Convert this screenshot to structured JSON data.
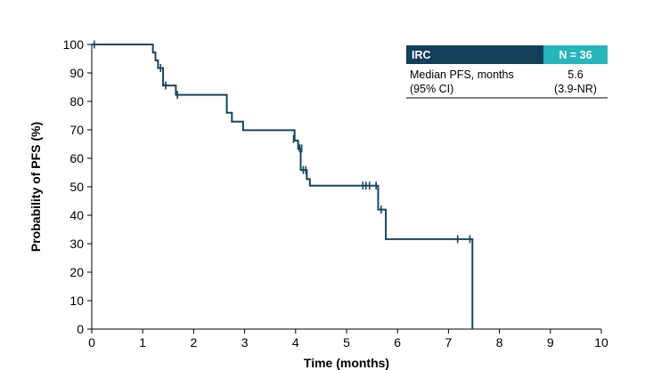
{
  "chart_data": {
    "type": "line",
    "subtype": "kaplan-meier",
    "xlabel": "Time (months)",
    "ylabel": "Probability of PFS (%)",
    "xlim": [
      0,
      10
    ],
    "ylim": [
      0,
      100
    ],
    "xticks": [
      0,
      1,
      2,
      3,
      4,
      5,
      6,
      7,
      8,
      9,
      10
    ],
    "yticks": [
      0,
      10,
      20,
      30,
      40,
      50,
      60,
      70,
      80,
      90,
      100
    ],
    "grid": false,
    "line_color": "#17455e",
    "series": [
      {
        "name": "IRC",
        "steps": [
          [
            0,
            100
          ],
          [
            1.2,
            100
          ],
          [
            1.2,
            97.2
          ],
          [
            1.25,
            97.2
          ],
          [
            1.25,
            94.4
          ],
          [
            1.3,
            94.4
          ],
          [
            1.3,
            91.7
          ],
          [
            1.4,
            91.7
          ],
          [
            1.4,
            85.6
          ],
          [
            1.65,
            85.6
          ],
          [
            1.65,
            82.3
          ],
          [
            2.65,
            82.3
          ],
          [
            2.65,
            76.0
          ],
          [
            2.75,
            76.0
          ],
          [
            2.75,
            72.9
          ],
          [
            2.97,
            72.9
          ],
          [
            2.97,
            69.9
          ],
          [
            3.98,
            69.9
          ],
          [
            3.98,
            66.2
          ],
          [
            4.05,
            66.2
          ],
          [
            4.05,
            63.3
          ],
          [
            4.1,
            63.3
          ],
          [
            4.1,
            55.9
          ],
          [
            4.22,
            55.9
          ],
          [
            4.22,
            52.7
          ],
          [
            4.28,
            52.7
          ],
          [
            4.28,
            50.4
          ],
          [
            5.62,
            50.4
          ],
          [
            5.62,
            42.0
          ],
          [
            5.77,
            42.0
          ],
          [
            5.77,
            31.6
          ],
          [
            7.47,
            31.6
          ],
          [
            7.47,
            0
          ]
        ],
        "censored": [
          [
            0.05,
            100
          ],
          [
            1.35,
            91.7
          ],
          [
            1.45,
            85.6
          ],
          [
            1.68,
            82.3
          ],
          [
            3.96,
            66.8
          ],
          [
            4.08,
            63.5
          ],
          [
            4.12,
            63.5
          ],
          [
            4.15,
            55.9
          ],
          [
            4.2,
            55.9
          ],
          [
            5.32,
            50.4
          ],
          [
            5.38,
            50.4
          ],
          [
            5.45,
            50.4
          ],
          [
            5.58,
            50.4
          ],
          [
            5.68,
            42.0
          ],
          [
            7.18,
            31.6
          ],
          [
            7.42,
            31.6
          ]
        ]
      }
    ],
    "legend": {
      "placement": "top-right",
      "header_label": "IRC",
      "header_n": "N = 36",
      "row_label_1": "Median PFS, months",
      "row_label_2": "(95% CI)",
      "row_value_1": "5.6",
      "row_value_2": "(3.9-NR)",
      "header_color": "#133f5a",
      "n_color": "#26b5b9"
    }
  }
}
